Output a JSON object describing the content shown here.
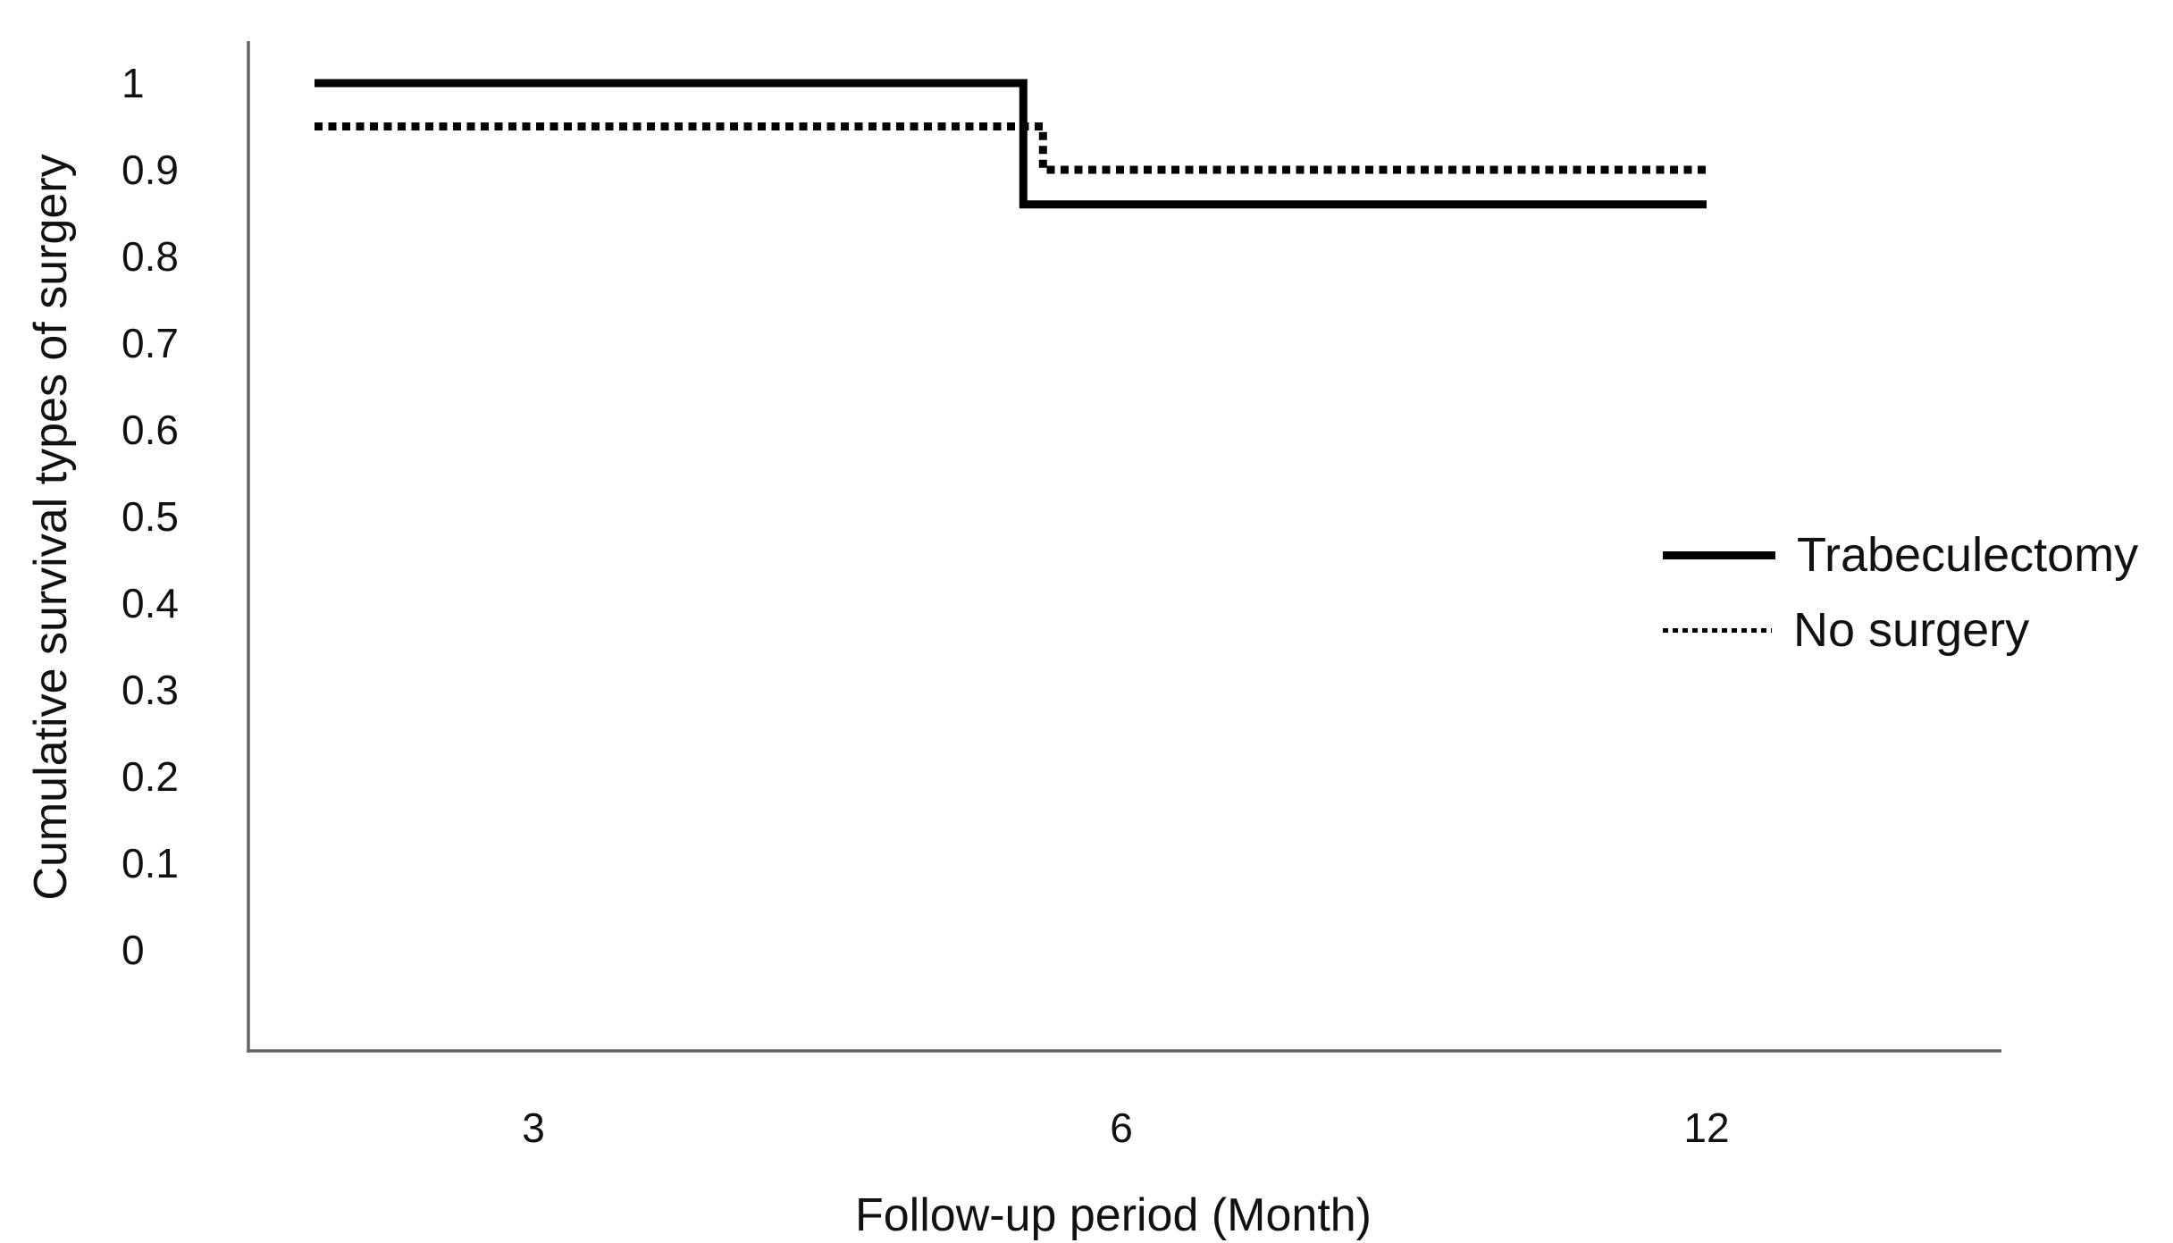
{
  "figure": {
    "background_color": "#ffffff",
    "text_color": "#111111",
    "axis_line_color": "#646464",
    "series_line_color": "#000000"
  },
  "chart_data": {
    "type": "line",
    "subtype": "kaplan-meier-step-survival",
    "title": "",
    "xlabel": "Follow-up period (Month)",
    "ylabel": "Cumulative survival types of surgery",
    "x_tick_labels": [
      "3",
      "6",
      "12"
    ],
    "x_tick_months": [
      3,
      6,
      12
    ],
    "y_tick_labels": [
      "1",
      "0.9",
      "0.8",
      "0.7",
      "0.6",
      "0.5",
      "0.4",
      "0.3",
      "0.2",
      "0.1",
      "0"
    ],
    "y_tick_values": [
      1,
      0.9,
      0.8,
      0.7,
      0.6,
      0.5,
      0.4,
      0.3,
      0.2,
      0.1,
      0
    ],
    "ylim": [
      0,
      1
    ],
    "xrange_months": [
      0,
      12
    ],
    "grid": false,
    "legend_position": "center-right",
    "series": [
      {
        "name": "Trabeculectomy",
        "line_style": "solid",
        "color": "#000000",
        "points": [
          {
            "month": 0,
            "survival": 1.0
          },
          {
            "month": 5.5,
            "survival": 1.0
          },
          {
            "month": 5.5,
            "survival": 0.86
          },
          {
            "month": 12,
            "survival": 0.86
          }
        ]
      },
      {
        "name": "No surgery",
        "line_style": "dotted",
        "color": "#000000",
        "points": [
          {
            "month": 0,
            "survival": 0.95
          },
          {
            "month": 5.6,
            "survival": 0.95
          },
          {
            "month": 5.6,
            "survival": 0.9
          },
          {
            "month": 12,
            "survival": 0.9
          }
        ]
      }
    ]
  }
}
